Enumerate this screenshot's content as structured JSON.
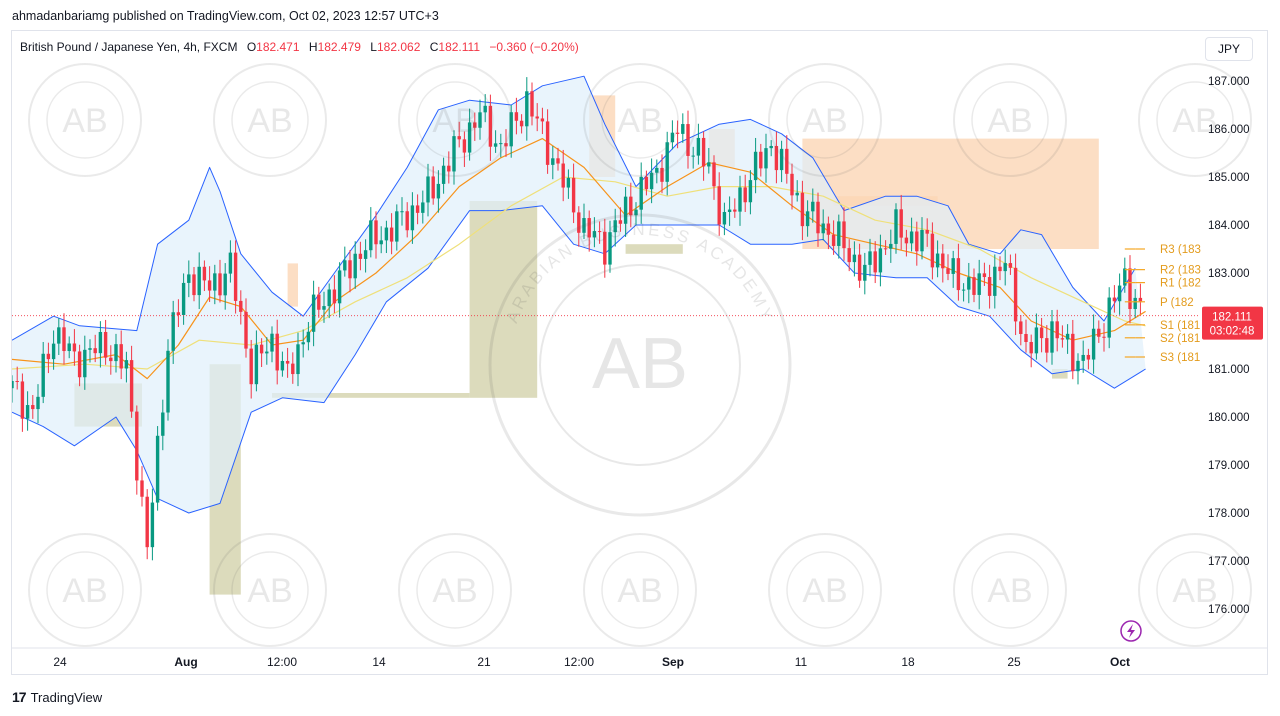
{
  "header": {
    "published": "ahmadanbariamg published on TradingView.com, Oct 02, 2023 12:57 UTC+3",
    "symbol": "British Pound / Japanese Yen, 4h, FXCM",
    "o_label": "O",
    "o_value": "182.471",
    "h_label": "H",
    "h_value": "182.479",
    "l_label": "L",
    "l_value": "182.062",
    "c_label": "C",
    "c_value": "182.111",
    "change": "−0.360 (−0.20%)"
  },
  "currency": "JPY",
  "footer": {
    "brand": "TradingView"
  },
  "watermark": {
    "text": "AB",
    "arc": "ARABIAN BUSINESS ACADEMY"
  },
  "price_tag": {
    "price": "182.111",
    "countdown": "03:02:48"
  },
  "colors": {
    "up": "#089981",
    "down": "#f23645",
    "band_line": "#2962ff",
    "band_fill": "#dff0fb",
    "ema_fast": "#f7931a",
    "ema_slow": "#f0e68c",
    "supply": "#fbd6b5",
    "demand": "#d8d7b5",
    "pivot": "#f5a623"
  },
  "chart_data": {
    "type": "candlestick",
    "symbol": "GBPJPY",
    "interval": "4h",
    "y_axis": {
      "ticks": [
        176,
        177,
        178,
        179,
        180,
        181,
        182,
        183,
        184,
        185,
        186,
        187
      ],
      "range": [
        175.3,
        187.6
      ]
    },
    "x_axis": {
      "ticks": [
        "24",
        "Aug",
        "12:00",
        "14",
        "21",
        "12:00",
        "Sep",
        "11",
        "18",
        "25",
        "Oct"
      ]
    },
    "last_price": 182.111,
    "pivots": [
      {
        "name": "R3",
        "label": "R3 (183",
        "value": 183.5
      },
      {
        "name": "R2",
        "label": "R2 (183",
        "value": 183.07
      },
      {
        "name": "R1",
        "label": "R1 (182",
        "value": 182.8
      },
      {
        "name": "P",
        "label": "P (182",
        "value": 182.4
      },
      {
        "name": "S1",
        "label": "S1 (181",
        "value": 181.92
      },
      {
        "name": "S2",
        "label": "S2 (181",
        "value": 181.65
      },
      {
        "name": "S3",
        "label": "S3 (181",
        "value": 181.25
      }
    ],
    "path_anchors": [
      [
        0,
        180.6
      ],
      [
        4,
        180.1
      ],
      [
        8,
        181.8
      ],
      [
        12,
        181.2
      ],
      [
        18,
        181.5
      ],
      [
        22,
        181.0
      ],
      [
        26,
        177.2
      ],
      [
        30,
        181.5
      ],
      [
        34,
        183.0
      ],
      [
        38,
        182.7
      ],
      [
        42,
        183.1
      ],
      [
        46,
        181.0
      ],
      [
        50,
        181.6
      ],
      [
        53,
        180.8
      ],
      [
        57,
        182.0
      ],
      [
        62,
        182.7
      ],
      [
        68,
        183.6
      ],
      [
        74,
        184.0
      ],
      [
        80,
        184.6
      ],
      [
        86,
        185.7
      ],
      [
        90,
        186.3
      ],
      [
        94,
        185.6
      ],
      [
        99,
        186.6
      ],
      [
        104,
        185.4
      ],
      [
        110,
        183.9
      ],
      [
        114,
        183.6
      ],
      [
        118,
        184.3
      ],
      [
        124,
        185.1
      ],
      [
        128,
        186.0
      ],
      [
        134,
        185.2
      ],
      [
        137,
        184.0
      ],
      [
        141,
        184.8
      ],
      [
        146,
        185.7
      ],
      [
        152,
        184.3
      ],
      [
        158,
        183.8
      ],
      [
        164,
        183.0
      ],
      [
        170,
        183.9
      ],
      [
        176,
        183.6
      ],
      [
        181,
        182.9
      ],
      [
        186,
        182.7
      ],
      [
        191,
        183.2
      ],
      [
        195,
        181.4
      ],
      [
        200,
        181.8
      ],
      [
        206,
        181.1
      ],
      [
        210,
        182.0
      ],
      [
        214,
        182.9
      ],
      [
        217,
        182.2
      ]
    ],
    "bollinger_upper": [
      [
        0,
        181.6
      ],
      [
        8,
        182.1
      ],
      [
        13,
        181.9
      ],
      [
        24,
        181.8
      ],
      [
        28,
        183.6
      ],
      [
        34,
        184.1
      ],
      [
        38,
        185.2
      ],
      [
        40,
        184.7
      ],
      [
        44,
        183.4
      ],
      [
        50,
        182.6
      ],
      [
        56,
        182.1
      ],
      [
        62,
        183.0
      ],
      [
        70,
        184.2
      ],
      [
        76,
        185.2
      ],
      [
        82,
        186.4
      ],
      [
        88,
        186.6
      ],
      [
        96,
        186.5
      ],
      [
        102,
        186.9
      ],
      [
        110,
        187.1
      ],
      [
        114,
        186.1
      ],
      [
        120,
        184.8
      ],
      [
        128,
        185.7
      ],
      [
        136,
        186.1
      ],
      [
        142,
        186.2
      ],
      [
        148,
        185.9
      ],
      [
        154,
        185.4
      ],
      [
        160,
        184.3
      ],
      [
        168,
        184.6
      ],
      [
        174,
        184.6
      ],
      [
        180,
        184.4
      ],
      [
        184,
        183.6
      ],
      [
        190,
        183.4
      ],
      [
        194,
        183.9
      ],
      [
        198,
        183.8
      ],
      [
        204,
        182.7
      ],
      [
        210,
        182.0
      ],
      [
        216,
        183.1
      ]
    ],
    "bollinger_lower": [
      [
        0,
        180.1
      ],
      [
        6,
        179.8
      ],
      [
        12,
        179.4
      ],
      [
        20,
        180.0
      ],
      [
        24,
        179.3
      ],
      [
        28,
        178.3
      ],
      [
        34,
        178.0
      ],
      [
        40,
        178.2
      ],
      [
        46,
        180.1
      ],
      [
        52,
        180.4
      ],
      [
        60,
        180.3
      ],
      [
        66,
        181.3
      ],
      [
        72,
        182.4
      ],
      [
        80,
        183.1
      ],
      [
        88,
        184.3
      ],
      [
        94,
        184.3
      ],
      [
        102,
        184.4
      ],
      [
        108,
        183.6
      ],
      [
        114,
        183.4
      ],
      [
        120,
        184.0
      ],
      [
        128,
        184.0
      ],
      [
        136,
        184.0
      ],
      [
        142,
        183.6
      ],
      [
        150,
        183.6
      ],
      [
        156,
        183.7
      ],
      [
        162,
        183.0
      ],
      [
        170,
        182.9
      ],
      [
        176,
        182.9
      ],
      [
        182,
        182.3
      ],
      [
        188,
        182.1
      ],
      [
        194,
        181.4
      ],
      [
        200,
        180.9
      ],
      [
        206,
        181.0
      ],
      [
        212,
        180.6
      ],
      [
        218,
        181.0
      ]
    ],
    "ema_fast": [
      [
        0,
        181.2
      ],
      [
        10,
        181.1
      ],
      [
        20,
        181.3
      ],
      [
        26,
        180.8
      ],
      [
        32,
        181.5
      ],
      [
        38,
        182.5
      ],
      [
        44,
        182.3
      ],
      [
        50,
        181.5
      ],
      [
        56,
        181.6
      ],
      [
        62,
        182.4
      ],
      [
        70,
        183.0
      ],
      [
        78,
        183.8
      ],
      [
        86,
        184.8
      ],
      [
        94,
        185.4
      ],
      [
        102,
        185.8
      ],
      [
        110,
        185.2
      ],
      [
        118,
        184.2
      ],
      [
        126,
        184.8
      ],
      [
        134,
        185.3
      ],
      [
        142,
        185.1
      ],
      [
        150,
        184.4
      ],
      [
        158,
        183.8
      ],
      [
        166,
        183.6
      ],
      [
        174,
        183.4
      ],
      [
        182,
        183.0
      ],
      [
        190,
        182.7
      ],
      [
        196,
        182.0
      ],
      [
        204,
        181.6
      ],
      [
        212,
        181.8
      ],
      [
        218,
        182.2
      ]
    ],
    "ema_slow": [
      [
        0,
        181.0
      ],
      [
        14,
        181.1
      ],
      [
        26,
        181.0
      ],
      [
        36,
        181.6
      ],
      [
        46,
        181.5
      ],
      [
        56,
        181.8
      ],
      [
        66,
        182.4
      ],
      [
        76,
        182.9
      ],
      [
        86,
        183.6
      ],
      [
        96,
        184.4
      ],
      [
        106,
        185.0
      ],
      [
        116,
        184.9
      ],
      [
        126,
        184.6
      ],
      [
        136,
        184.8
      ],
      [
        146,
        184.8
      ],
      [
        156,
        184.6
      ],
      [
        166,
        184.1
      ],
      [
        176,
        183.9
      ],
      [
        186,
        183.5
      ],
      [
        196,
        182.9
      ],
      [
        206,
        182.4
      ],
      [
        214,
        182.0
      ],
      [
        218,
        181.9
      ]
    ],
    "zones": [
      {
        "type": "demand",
        "x": [
          12,
          25
        ],
        "y": [
          179.8,
          180.7
        ]
      },
      {
        "type": "demand",
        "x": [
          38,
          44
        ],
        "y": [
          176.3,
          181.1
        ]
      },
      {
        "type": "demand",
        "x": [
          50,
          88
        ],
        "y": [
          180.4,
          180.5
        ]
      },
      {
        "type": "demand",
        "x": [
          88,
          101
        ],
        "y": [
          180.4,
          184.5
        ]
      },
      {
        "type": "demand",
        "x": [
          118,
          129
        ],
        "y": [
          183.4,
          183.6
        ]
      },
      {
        "type": "demand",
        "x": [
          200,
          203
        ],
        "y": [
          180.8,
          181.0
        ]
      },
      {
        "type": "supply",
        "x": [
          53,
          55
        ],
        "y": [
          182.3,
          183.2
        ]
      },
      {
        "type": "supply",
        "x": [
          111,
          116
        ],
        "y": [
          185.0,
          186.7
        ]
      },
      {
        "type": "supply",
        "x": [
          134,
          139
        ],
        "y": [
          185.2,
          186.0
        ]
      },
      {
        "type": "supply",
        "x": [
          152,
          209
        ],
        "y": [
          183.5,
          185.8
        ]
      },
      {
        "type": "supply",
        "x": [
          158,
          178
        ],
        "y": [
          184.4,
          184.6
        ]
      }
    ]
  }
}
